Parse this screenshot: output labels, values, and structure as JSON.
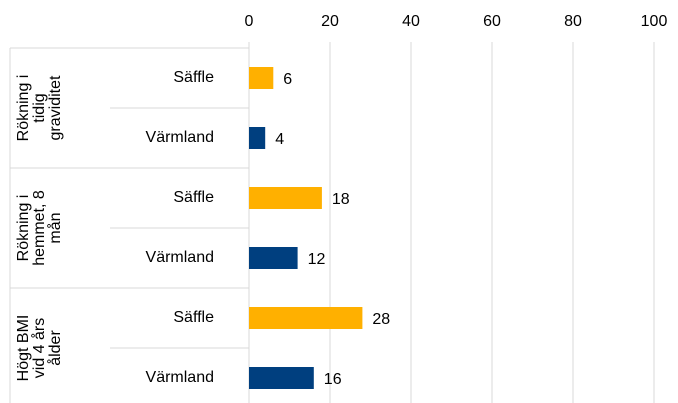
{
  "chart_data": {
    "type": "bar",
    "orientation": "horizontal",
    "groups": [
      {
        "label_lines": [
          "Rökning i",
          "tidig",
          "graviditet"
        ]
      },
      {
        "label_lines": [
          "Rökning i",
          "hemmet, 8",
          "mån"
        ]
      },
      {
        "label_lines": [
          "Högt BMI",
          "vid 4 års",
          "ålder"
        ]
      }
    ],
    "series": [
      {
        "name": "Säffle",
        "color": "#ffb000",
        "values": [
          6,
          18,
          28
        ]
      },
      {
        "name": "Värmland",
        "color": "#003f7f",
        "values": [
          4,
          12,
          16
        ]
      }
    ],
    "xlim": [
      0,
      100
    ],
    "xticks": [
      0,
      20,
      40,
      60,
      80,
      100
    ],
    "grid": true
  }
}
